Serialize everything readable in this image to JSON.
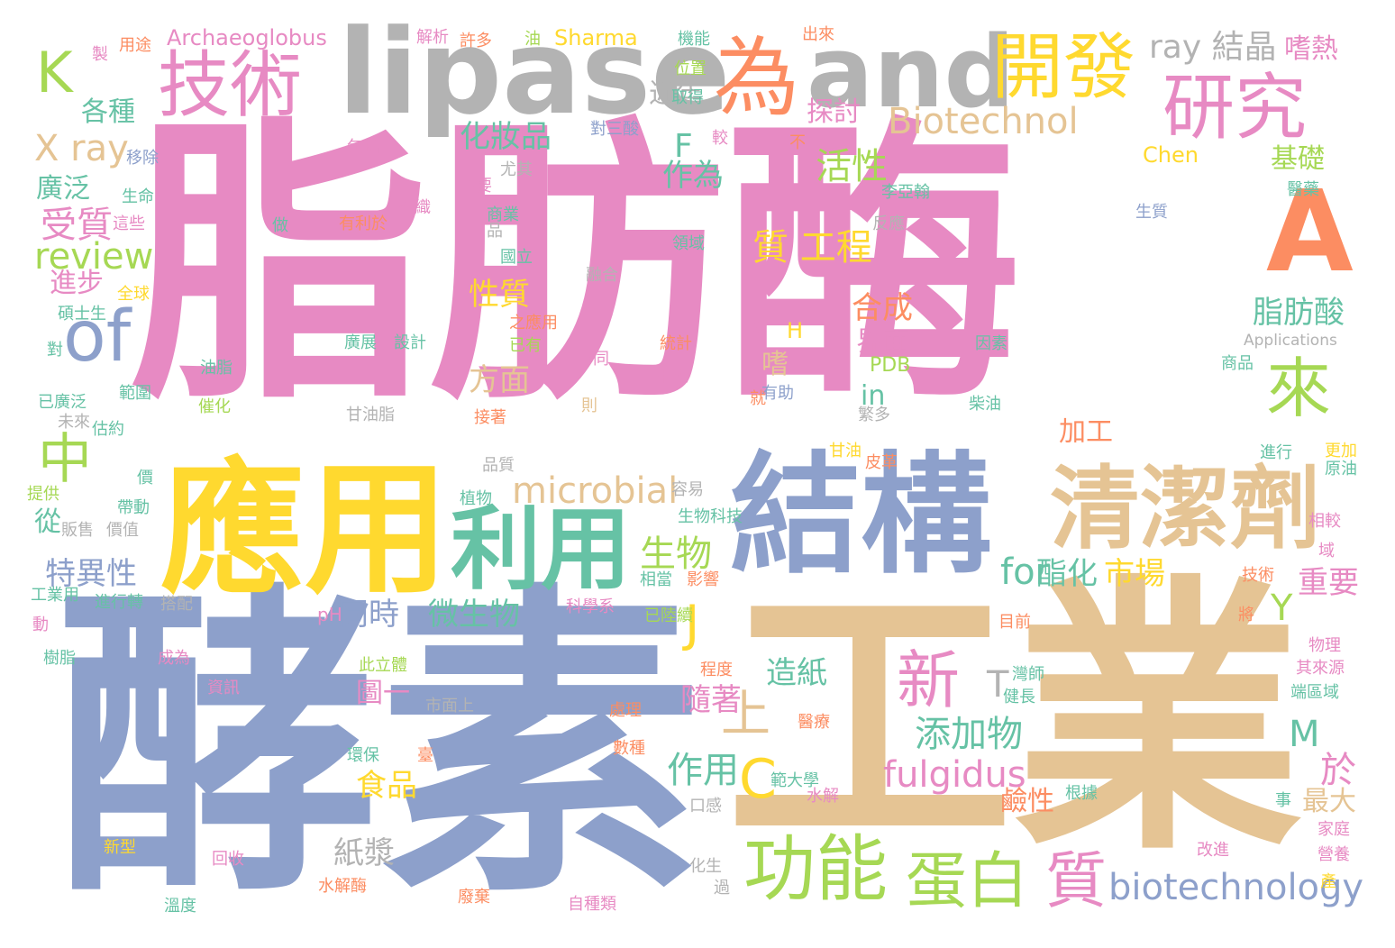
{
  "colors": {
    "pink": "#e78ac3",
    "blue": "#8da0cb",
    "tan": "#e5c494",
    "yellow": "#ffd92f",
    "green": "#a6d854",
    "teal": "#66c2a5",
    "orange": "#fc8d62",
    "gray": "#b3b3b3"
  },
  "words": [
    {
      "text": "脂肪酶",
      "color": "pink"
    },
    {
      "text": "酵素",
      "color": "blue"
    },
    {
      "text": "工業",
      "color": "tan"
    },
    {
      "text": "lipase",
      "color": "gray"
    },
    {
      "text": "結構",
      "color": "blue"
    },
    {
      "text": "應用",
      "color": "yellow"
    },
    {
      "text": "and",
      "color": "gray"
    },
    {
      "text": "A",
      "color": "orange"
    },
    {
      "text": "清潔劑",
      "color": "tan"
    },
    {
      "text": "利用",
      "color": "teal"
    },
    {
      "text": "為",
      "color": "orange"
    },
    {
      "text": "技術",
      "color": "pink"
    },
    {
      "text": "研究",
      "color": "pink"
    },
    {
      "text": "開發",
      "color": "yellow"
    },
    {
      "text": "功能",
      "color": "green"
    },
    {
      "text": "蛋白",
      "color": "green"
    },
    {
      "text": "質",
      "color": "pink"
    },
    {
      "text": "of",
      "color": "blue"
    },
    {
      "text": "來",
      "color": "green"
    },
    {
      "text": "中",
      "color": "green"
    },
    {
      "text": "K",
      "color": "green"
    },
    {
      "text": "新",
      "color": "pink"
    },
    {
      "text": "biotechnology",
      "color": "blue"
    },
    {
      "text": "microbial",
      "color": "tan"
    },
    {
      "text": "Biotechnol",
      "color": "tan"
    },
    {
      "text": "C",
      "color": "yellow"
    },
    {
      "text": "上",
      "color": "tan"
    },
    {
      "text": "J",
      "color": "yellow"
    },
    {
      "text": "fulgidus",
      "color": "pink"
    },
    {
      "text": "添加物",
      "color": "teal"
    },
    {
      "text": "質 工程",
      "color": "yellow"
    },
    {
      "text": "review",
      "color": "green"
    },
    {
      "text": "X ray",
      "color": "tan"
    },
    {
      "text": "ray 結晶",
      "color": "gray"
    },
    {
      "text": "作用",
      "color": "teal"
    },
    {
      "text": "活性",
      "color": "green"
    },
    {
      "text": "生物",
      "color": "green"
    },
    {
      "text": "受質",
      "color": "pink"
    },
    {
      "text": "化妝品",
      "color": "teal"
    },
    {
      "text": "for",
      "color": "teal"
    },
    {
      "text": "合成",
      "color": "orange"
    },
    {
      "text": "造紙",
      "color": "teal"
    },
    {
      "text": "紙漿",
      "color": "gray"
    },
    {
      "text": "食品",
      "color": "yellow"
    },
    {
      "text": "微生物",
      "color": "teal"
    },
    {
      "text": "同時",
      "color": "blue"
    },
    {
      "text": "特異性",
      "color": "blue"
    },
    {
      "text": "市場",
      "color": "yellow"
    },
    {
      "text": "酯化",
      "color": "teal"
    },
    {
      "text": "重要",
      "color": "pink"
    },
    {
      "text": "脂肪酸",
      "color": "teal"
    },
    {
      "text": "方面",
      "color": "tan"
    },
    {
      "text": "性質",
      "color": "yellow"
    },
    {
      "text": "作為",
      "color": "teal"
    },
    {
      "text": "隨著",
      "color": "pink"
    },
    {
      "text": "探討",
      "color": "pink"
    },
    {
      "text": "近年",
      "color": "gray"
    },
    {
      "text": "嗜熱",
      "color": "pink"
    },
    {
      "text": "基礎",
      "color": "green"
    },
    {
      "text": "各種",
      "color": "teal"
    },
    {
      "text": "廣泛",
      "color": "teal"
    },
    {
      "text": "進步",
      "color": "pink"
    },
    {
      "text": "界面",
      "color": "pink"
    },
    {
      "text": "加工",
      "color": "orange"
    },
    {
      "text": "鹼性",
      "color": "orange"
    },
    {
      "text": "最大",
      "color": "tan"
    },
    {
      "text": "於",
      "color": "pink"
    },
    {
      "text": "圖一",
      "color": "pink"
    },
    {
      "text": "從",
      "color": "teal"
    },
    {
      "text": "F",
      "color": "teal"
    },
    {
      "text": "Y",
      "color": "green"
    },
    {
      "text": "M",
      "color": "teal"
    },
    {
      "text": "T",
      "color": "gray"
    },
    {
      "text": "嗜",
      "color": "tan"
    },
    {
      "text": "in",
      "color": "teal"
    },
    {
      "text": "Archaeoglobus",
      "color": "pink"
    },
    {
      "text": "Sharma",
      "color": "yellow"
    },
    {
      "text": "Chen",
      "color": "yellow"
    },
    {
      "text": "PDB",
      "color": "green"
    },
    {
      "text": "Applications",
      "color": "gray"
    },
    {
      "text": "H",
      "color": "yellow"
    },
    {
      "text": "pH",
      "color": "pink"
    },
    {
      "text": "解析",
      "color": "pink"
    },
    {
      "text": "許多",
      "color": "orange"
    },
    {
      "text": "油",
      "color": "green"
    },
    {
      "text": "機能",
      "color": "teal"
    },
    {
      "text": "出來",
      "color": "orange"
    },
    {
      "text": "用途",
      "color": "orange"
    },
    {
      "text": "製",
      "color": "pink"
    },
    {
      "text": "位置",
      "color": "green"
    },
    {
      "text": "取得",
      "color": "teal"
    },
    {
      "text": "對三酸",
      "color": "blue"
    },
    {
      "text": "較",
      "color": "pink"
    },
    {
      "text": "包括",
      "color": "pink"
    },
    {
      "text": "不",
      "color": "orange"
    },
    {
      "text": "移除",
      "color": "blue"
    },
    {
      "text": "尤其",
      "color": "gray"
    },
    {
      "text": "主要",
      "color": "pink"
    },
    {
      "text": "生命",
      "color": "teal"
    },
    {
      "text": "紡織",
      "color": "pink"
    },
    {
      "text": "李亞翰",
      "color": "teal"
    },
    {
      "text": "醫藥",
      "color": "teal"
    },
    {
      "text": "這些",
      "color": "pink"
    },
    {
      "text": "商業",
      "color": "teal"
    },
    {
      "text": "品",
      "color": "gray"
    },
    {
      "text": "有利於",
      "color": "orange"
    },
    {
      "text": "做",
      "color": "teal"
    },
    {
      "text": "反應",
      "color": "gray"
    },
    {
      "text": "生質",
      "color": "blue"
    },
    {
      "text": "國立",
      "color": "teal"
    },
    {
      "text": "融合",
      "color": "gray"
    },
    {
      "text": "領域",
      "color": "teal"
    },
    {
      "text": "全球",
      "color": "yellow"
    },
    {
      "text": "碩士生",
      "color": "teal"
    },
    {
      "text": "之應用",
      "color": "orange"
    },
    {
      "text": "已有",
      "color": "green"
    },
    {
      "text": "約",
      "color": "pink"
    },
    {
      "text": "廣展",
      "color": "teal"
    },
    {
      "text": "設計",
      "color": "teal"
    },
    {
      "text": "統計",
      "color": "orange"
    },
    {
      "text": "因素",
      "color": "teal"
    },
    {
      "text": "對",
      "color": "teal"
    },
    {
      "text": "油脂",
      "color": "teal"
    },
    {
      "text": "不同",
      "color": "pink"
    },
    {
      "text": "用來",
      "color": "pink"
    },
    {
      "text": "有助",
      "color": "blue"
    },
    {
      "text": "商品",
      "color": "teal"
    },
    {
      "text": "已廣泛",
      "color": "teal"
    },
    {
      "text": "範圍",
      "color": "teal"
    },
    {
      "text": "催化",
      "color": "green"
    },
    {
      "text": "甘油脂",
      "color": "gray"
    },
    {
      "text": "接著",
      "color": "orange"
    },
    {
      "text": "則",
      "color": "tan"
    },
    {
      "text": "就",
      "color": "orange"
    },
    {
      "text": "柴油",
      "color": "teal"
    },
    {
      "text": "未來",
      "color": "gray"
    },
    {
      "text": "估約",
      "color": "teal"
    },
    {
      "text": "繁多",
      "color": "gray"
    },
    {
      "text": "甘油",
      "color": "yellow"
    },
    {
      "text": "進行",
      "color": "teal"
    },
    {
      "text": "更加",
      "color": "yellow"
    },
    {
      "text": "原油",
      "color": "teal"
    },
    {
      "text": "價",
      "color": "teal"
    },
    {
      "text": "品質",
      "color": "gray"
    },
    {
      "text": "皮革",
      "color": "orange"
    },
    {
      "text": "提供",
      "color": "green"
    },
    {
      "text": "植物",
      "color": "teal"
    },
    {
      "text": "容易",
      "color": "gray"
    },
    {
      "text": "帶動",
      "color": "teal"
    },
    {
      "text": "販售",
      "color": "gray"
    },
    {
      "text": "價值",
      "color": "gray"
    },
    {
      "text": "生物科技",
      "color": "teal"
    },
    {
      "text": "相較",
      "color": "pink"
    },
    {
      "text": "域",
      "color": "pink"
    },
    {
      "text": "工業用",
      "color": "teal"
    },
    {
      "text": "進行轉",
      "color": "teal"
    },
    {
      "text": "搭配",
      "color": "gray"
    },
    {
      "text": "科學系",
      "color": "pink"
    },
    {
      "text": "相當",
      "color": "teal"
    },
    {
      "text": "影響",
      "color": "orange"
    },
    {
      "text": "技術",
      "color": "orange"
    },
    {
      "text": "將",
      "color": "orange"
    },
    {
      "text": "動",
      "color": "pink"
    },
    {
      "text": "已陸續",
      "color": "green"
    },
    {
      "text": "目前",
      "color": "orange"
    },
    {
      "text": "物理",
      "color": "pink"
    },
    {
      "text": "樹脂",
      "color": "teal"
    },
    {
      "text": "成為",
      "color": "pink"
    },
    {
      "text": "此立體",
      "color": "green"
    },
    {
      "text": "程度",
      "color": "orange"
    },
    {
      "text": "灣師",
      "color": "teal"
    },
    {
      "text": "其來源",
      "color": "pink"
    },
    {
      "text": "資訊",
      "color": "pink"
    },
    {
      "text": "市面上",
      "color": "gray"
    },
    {
      "text": "健長",
      "color": "teal"
    },
    {
      "text": "端區域",
      "color": "teal"
    },
    {
      "text": "處理",
      "color": "orange"
    },
    {
      "text": "醫療",
      "color": "orange"
    },
    {
      "text": "環保",
      "color": "teal"
    },
    {
      "text": "臺",
      "color": "orange"
    },
    {
      "text": "數種",
      "color": "orange"
    },
    {
      "text": "範大學",
      "color": "teal"
    },
    {
      "text": "水解",
      "color": "pink"
    },
    {
      "text": "根據",
      "color": "teal"
    },
    {
      "text": "事",
      "color": "teal"
    },
    {
      "text": "家庭",
      "color": "pink"
    },
    {
      "text": "口感",
      "color": "gray"
    },
    {
      "text": "新型",
      "color": "yellow"
    },
    {
      "text": "回收",
      "color": "pink"
    },
    {
      "text": "化生",
      "color": "gray"
    },
    {
      "text": "改進",
      "color": "pink"
    },
    {
      "text": "營養",
      "color": "pink"
    },
    {
      "text": "產",
      "color": "yellow"
    },
    {
      "text": "水解酶",
      "color": "orange"
    },
    {
      "text": "過",
      "color": "gray"
    },
    {
      "text": "廢棄",
      "color": "orange"
    },
    {
      "text": "自種類",
      "color": "pink"
    },
    {
      "text": "溫度",
      "color": "teal"
    }
  ]
}
